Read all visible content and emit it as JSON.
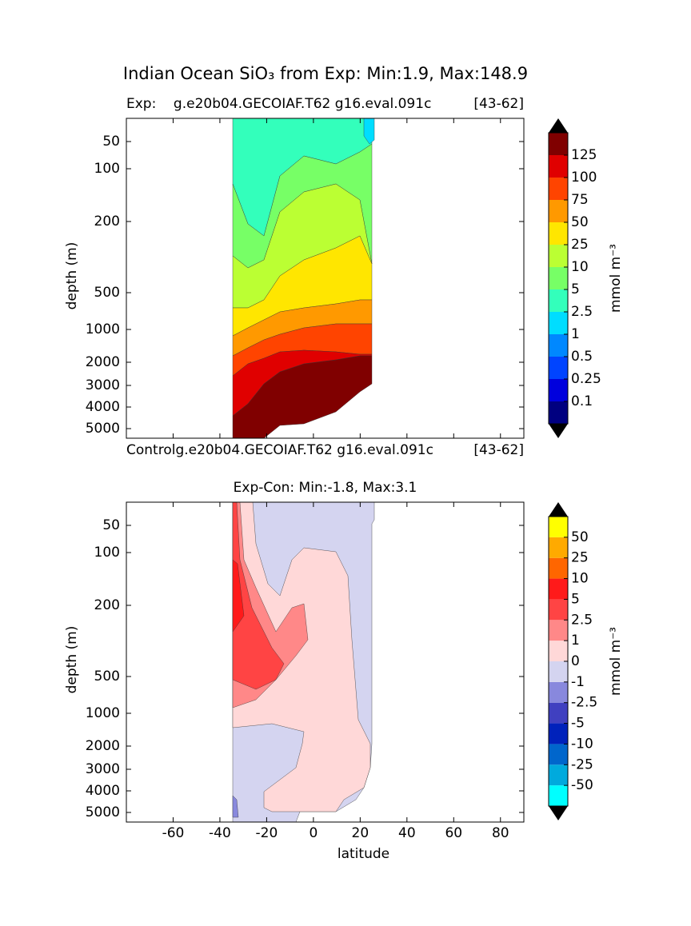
{
  "title": "Indian Ocean SiO₃ from Exp: Min:1.9, Max:148.9",
  "chart_data": [
    {
      "type": "contour",
      "title_left": "Exp:    g.e20b04.GECOIAF.T62 g16.eval.091c",
      "title_right": "[43-62]",
      "ylabel": "depth (m)",
      "xlim": [
        -80,
        90
      ],
      "ylim": [
        0,
        5500
      ],
      "yticks": [
        50,
        100,
        200,
        500,
        1000,
        2000,
        3000,
        4000,
        5000
      ],
      "levels": [
        0.1,
        0.25,
        0.5,
        1,
        2.5,
        5,
        10,
        25,
        50,
        75,
        100,
        125
      ],
      "colors": [
        "#000080",
        "#0000dd",
        "#0044ff",
        "#0088ff",
        "#00ddff",
        "#33ffbb",
        "#77ff66",
        "#bbff33",
        "#ffe600",
        "#ff9900",
        "#ff4400",
        "#e00000",
        "#800000"
      ],
      "colorbar_label": "mmol m⁻³"
    },
    {
      "type": "contour",
      "subtitle_left": "Controlg.e20b04.GECOIAF.T62 g16.eval.091c",
      "subtitle_right": "[43-62]",
      "title": "Exp-Con: Min:-1.8, Max:3.1",
      "xlabel": "latitude",
      "ylabel": "depth (m)",
      "xlim": [
        -80,
        90
      ],
      "ylim": [
        0,
        5500
      ],
      "xticks": [
        -60,
        -40,
        -20,
        0,
        20,
        40,
        60,
        80
      ],
      "yticks": [
        50,
        100,
        200,
        500,
        1000,
        2000,
        3000,
        4000,
        5000
      ],
      "levels": [
        -50,
        -25,
        -10,
        -5,
        -2.5,
        -1,
        0,
        1,
        2.5,
        5,
        10,
        25,
        50
      ],
      "colors": [
        "#00ffff",
        "#00aadd",
        "#0066cc",
        "#0022bb",
        "#4040c0",
        "#8888dd",
        "#d4d4f0",
        "#ffd8d8",
        "#ff8888",
        "#ff4444",
        "#ff1a1a",
        "#ff6600",
        "#ffaa00",
        "#ffff00"
      ],
      "colorbar_label": "mmol m⁻³"
    }
  ]
}
